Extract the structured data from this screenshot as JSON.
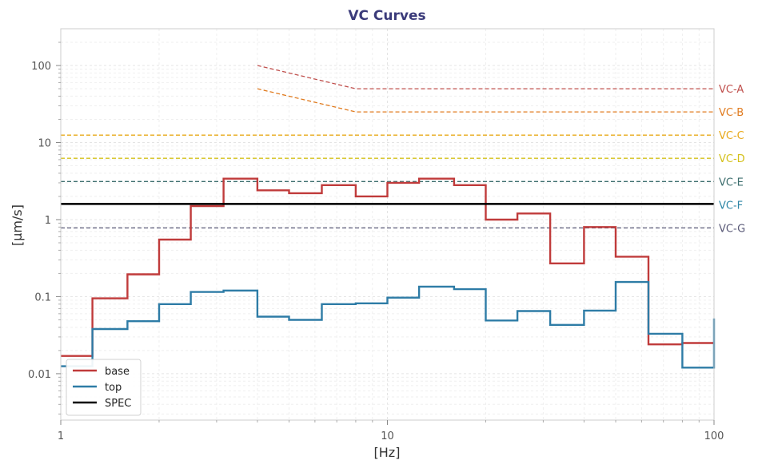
{
  "chart_data": {
    "type": "line",
    "title": "VC Curves",
    "xlabel": "[Hz]",
    "ylabel": "[µm/s]",
    "x_scale": "log",
    "y_scale": "log",
    "xlim": [
      1,
      100
    ],
    "ylim": [
      0.0025,
      300
    ],
    "x_ticks": [
      1,
      10,
      100
    ],
    "x_tick_labels": [
      "1",
      "10",
      "100"
    ],
    "y_ticks": [
      0.01,
      0.1,
      1,
      10,
      100
    ],
    "y_tick_labels": [
      "0.01",
      "0.1",
      "1",
      "10",
      "100"
    ],
    "grid": true,
    "legend_position": "lower-left",
    "colors": {
      "title": "#3b3b7a",
      "base": "#c03b3b",
      "top": "#2e7ca6",
      "spec": "#000000"
    },
    "band_edges": [
      1,
      1.25,
      1.6,
      2,
      2.5,
      3.15,
      4,
      5,
      6.3,
      8,
      10,
      12.5,
      16,
      20,
      25,
      31.5,
      40,
      50,
      63,
      80,
      100
    ],
    "series": [
      {
        "name": "base",
        "color": "#c03b3b",
        "values": [
          0.017,
          0.095,
          0.195,
          0.55,
          1.5,
          3.4,
          2.4,
          2.2,
          2.8,
          2.0,
          3.0,
          3.4,
          2.8,
          1.0,
          1.2,
          0.27,
          0.8,
          0.33,
          0.024,
          0.025
        ]
      },
      {
        "name": "top",
        "color": "#2e7ca6",
        "values": [
          0.0125,
          0.038,
          0.048,
          0.08,
          0.115,
          0.12,
          0.055,
          0.05,
          0.08,
          0.082,
          0.097,
          0.135,
          0.125,
          0.049,
          0.065,
          0.043,
          0.066,
          0.155,
          0.033,
          0.012
        ],
        "end_value": 0.052
      },
      {
        "name": "SPEC",
        "color": "#000000",
        "value": 1.6
      }
    ],
    "vc_curves": [
      {
        "label": "VC-A",
        "color": "#c0504d",
        "x": [
          4,
          8,
          100
        ],
        "y": [
          100,
          50,
          50
        ]
      },
      {
        "label": "VC-B",
        "color": "#e07b1f",
        "x": [
          4,
          8,
          100
        ],
        "y": [
          50,
          25,
          25
        ]
      },
      {
        "label": "VC-C",
        "color": "#e8a91a",
        "x": [
          1,
          100
        ],
        "y": [
          12.5,
          12.5
        ]
      },
      {
        "label": "VC-D",
        "color": "#d4c01a",
        "x": [
          1,
          100
        ],
        "y": [
          6.25,
          6.25
        ]
      },
      {
        "label": "VC-E",
        "color": "#3d6e6e",
        "x": [
          1,
          100
        ],
        "y": [
          3.12,
          3.12
        ]
      },
      {
        "label": "VC-F",
        "color": "#2e86a6",
        "x": [],
        "y": [],
        "value": 1.56
      },
      {
        "label": "VC-G",
        "color": "#5a5a78",
        "x": [
          1,
          100
        ],
        "y": [
          0.78,
          0.78
        ]
      }
    ]
  }
}
